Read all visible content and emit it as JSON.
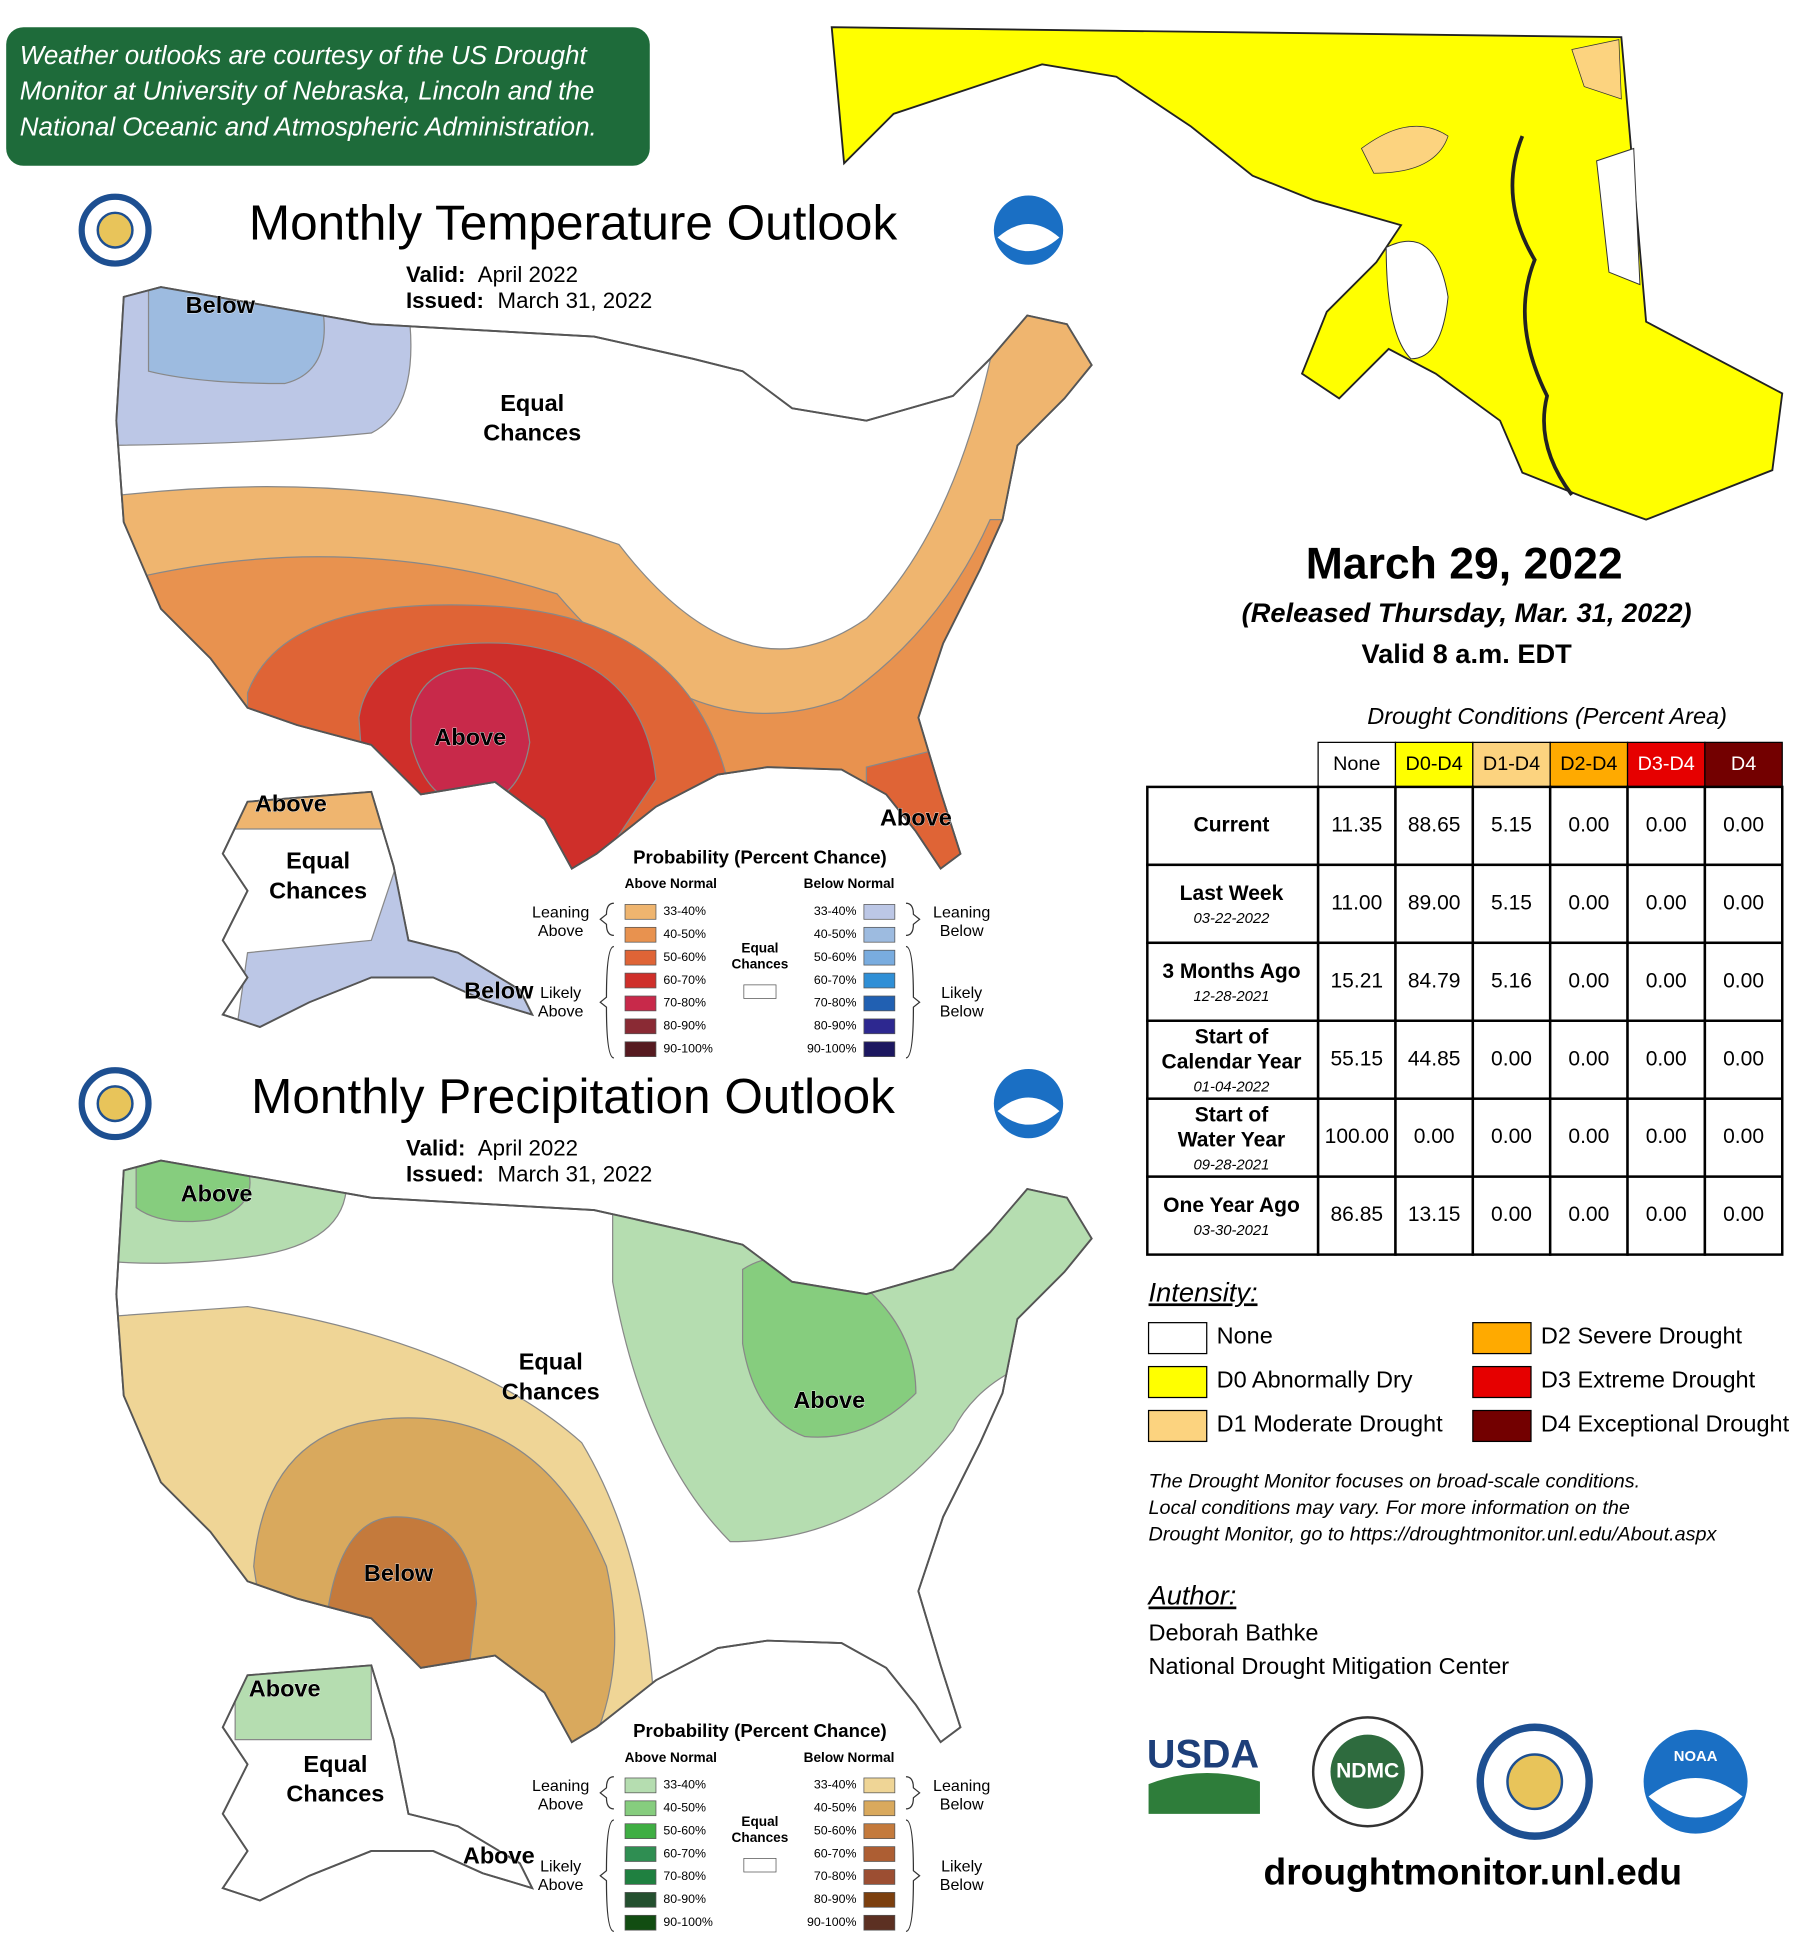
{
  "credit": [
    "Weather outlooks are courtesy of the US Drought",
    "Monitor at University of Nebraska, Lincoln and the",
    "National Oceanic and Atmospheric Administration."
  ],
  "outlooks": [
    {
      "title": "Monthly Temperature Outlook",
      "valid_label": "Valid:",
      "valid": "April 2022",
      "issued_label": "Issued:",
      "issued": "March 31, 2022",
      "map_labels": [
        [
          "Below"
        ],
        [
          "Equal",
          "Chances"
        ],
        [
          "Above"
        ],
        [
          "Above"
        ],
        [
          "Above"
        ],
        [
          "Equal",
          "Chances"
        ],
        [
          "Below"
        ]
      ],
      "legend": {
        "title": "Probability (Percent Chance)",
        "above_header": "Above Normal",
        "below_header": "Below Normal",
        "leaning_above": [
          "Leaning",
          "Above"
        ],
        "likely_above": [
          "Likely",
          "Above"
        ],
        "equal": [
          "Equal",
          "Chances"
        ],
        "leaning_below": [
          "Leaning",
          "Below"
        ],
        "likely_below": [
          "Likely",
          "Below"
        ],
        "above": [
          {
            "label": "33-40%",
            "color": "#efb56f"
          },
          {
            "label": "40-50%",
            "color": "#e8924f"
          },
          {
            "label": "50-60%",
            "color": "#df6436"
          },
          {
            "label": "60-70%",
            "color": "#cf2f2a"
          },
          {
            "label": "70-80%",
            "color": "#c8294a"
          },
          {
            "label": "80-90%",
            "color": "#8a2a34"
          },
          {
            "label": "90-100%",
            "color": "#561a20"
          }
        ],
        "below": [
          {
            "label": "33-40%",
            "color": "#bcc7e6"
          },
          {
            "label": "40-50%",
            "color": "#9dbbe0"
          },
          {
            "label": "50-60%",
            "color": "#79acdf"
          },
          {
            "label": "60-70%",
            "color": "#2f8fd6"
          },
          {
            "label": "70-80%",
            "color": "#2160b2"
          },
          {
            "label": "80-90%",
            "color": "#2d2890"
          },
          {
            "label": "90-100%",
            "color": "#1c1760"
          }
        ]
      }
    },
    {
      "title": "Monthly Precipitation Outlook",
      "valid_label": "Valid:",
      "valid": "April 2022",
      "issued_label": "Issued:",
      "issued": "March 31, 2022",
      "map_labels": [
        [
          "Above"
        ],
        [
          "Equal",
          "Chances"
        ],
        [
          "Above"
        ],
        [
          "Below"
        ],
        [
          "Above"
        ],
        [
          "Equal",
          "Chances"
        ],
        [
          "Above"
        ]
      ],
      "legend": {
        "title": "Probability (Percent Chance)",
        "above_header": "Above Normal",
        "below_header": "Below Normal",
        "leaning_above": [
          "Leaning",
          "Above"
        ],
        "likely_above": [
          "Likely",
          "Above"
        ],
        "equal": [
          "Equal",
          "Chances"
        ],
        "leaning_below": [
          "Leaning",
          "Below"
        ],
        "likely_below": [
          "Likely",
          "Below"
        ],
        "above": [
          {
            "label": "33-40%",
            "color": "#b5ddb0"
          },
          {
            "label": "40-50%",
            "color": "#86cd7e"
          },
          {
            "label": "50-60%",
            "color": "#3fae43"
          },
          {
            "label": "60-70%",
            "color": "#2f8e52"
          },
          {
            "label": "70-80%",
            "color": "#1f8040"
          },
          {
            "label": "80-90%",
            "color": "#24502f"
          },
          {
            "label": "90-100%",
            "color": "#124d12"
          }
        ],
        "below": [
          {
            "label": "33-40%",
            "color": "#efd596"
          },
          {
            "label": "40-50%",
            "color": "#d9a95d"
          },
          {
            "label": "50-60%",
            "color": "#c47a3c"
          },
          {
            "label": "60-70%",
            "color": "#ad5e33"
          },
          {
            "label": "70-80%",
            "color": "#9c4e32"
          },
          {
            "label": "80-90%",
            "color": "#7c3f0e"
          },
          {
            "label": "90-100%",
            "color": "#5c3022"
          }
        ]
      }
    }
  ],
  "drought": {
    "date": "March 29, 2022",
    "released": "(Released Thursday, Mar. 31, 2022)",
    "valid": "Valid 8 a.m. EDT",
    "table": {
      "title": "Drought Conditions (Percent Area)",
      "columns": [
        {
          "label": "None",
          "color": "#ffffff"
        },
        {
          "label": "D0-D4",
          "color": "#ffff00"
        },
        {
          "label": "D1-D4",
          "color": "#fcd37f"
        },
        {
          "label": "D2-D4",
          "color": "#ffaa00"
        },
        {
          "label": "D3-D4",
          "color": "#e60000"
        },
        {
          "label": "D4",
          "color": "#730000"
        }
      ],
      "rows": [
        {
          "label": [
            "Current"
          ],
          "values": [
            "11.35",
            "88.65",
            "5.15",
            "0.00",
            "0.00",
            "0.00"
          ]
        },
        {
          "label": [
            "Last Week"
          ],
          "date": "03-22-2022",
          "values": [
            "11.00",
            "89.00",
            "5.15",
            "0.00",
            "0.00",
            "0.00"
          ]
        },
        {
          "label": [
            "3 Months Ago"
          ],
          "date": "12-28-2021",
          "values": [
            "15.21",
            "84.79",
            "5.16",
            "0.00",
            "0.00",
            "0.00"
          ]
        },
        {
          "label": [
            "Start of",
            "Calendar Year"
          ],
          "date": "01-04-2022",
          "values": [
            "55.15",
            "44.85",
            "0.00",
            "0.00",
            "0.00",
            "0.00"
          ]
        },
        {
          "label": [
            "Start of",
            "Water Year"
          ],
          "date": "09-28-2021",
          "values": [
            "100.00",
            "0.00",
            "0.00",
            "0.00",
            "0.00",
            "0.00"
          ]
        },
        {
          "label": [
            "One Year Ago"
          ],
          "date": "03-30-2021",
          "values": [
            "86.85",
            "13.15",
            "0.00",
            "0.00",
            "0.00",
            "0.00"
          ]
        }
      ]
    },
    "intensity": {
      "title": "Intensity:",
      "items": [
        {
          "label": "None",
          "color": "#ffffff"
        },
        {
          "label": "D0 Abnormally Dry",
          "color": "#ffff00"
        },
        {
          "label": "D1 Moderate Drought",
          "color": "#fcd37f"
        },
        {
          "label": "D2 Severe Drought",
          "color": "#ffaa00"
        },
        {
          "label": "D3 Extreme Drought",
          "color": "#e60000"
        },
        {
          "label": "D4 Exceptional Drought",
          "color": "#730000"
        }
      ]
    },
    "note": [
      "The Drought Monitor focuses on broad-scale conditions.",
      "Local conditions may vary. For more information on the",
      "Drought Monitor, go to https://droughtmonitor.unl.edu/About.aspx"
    ],
    "author": {
      "title": "Author:",
      "name": "Deborah Bathke",
      "org": "National Drought Mitigation Center"
    },
    "logos": {
      "usda": "USDA",
      "ndmc": "NDMC",
      "noaa": "NOAA"
    },
    "url": "droughtmonitor.unl.edu"
  }
}
